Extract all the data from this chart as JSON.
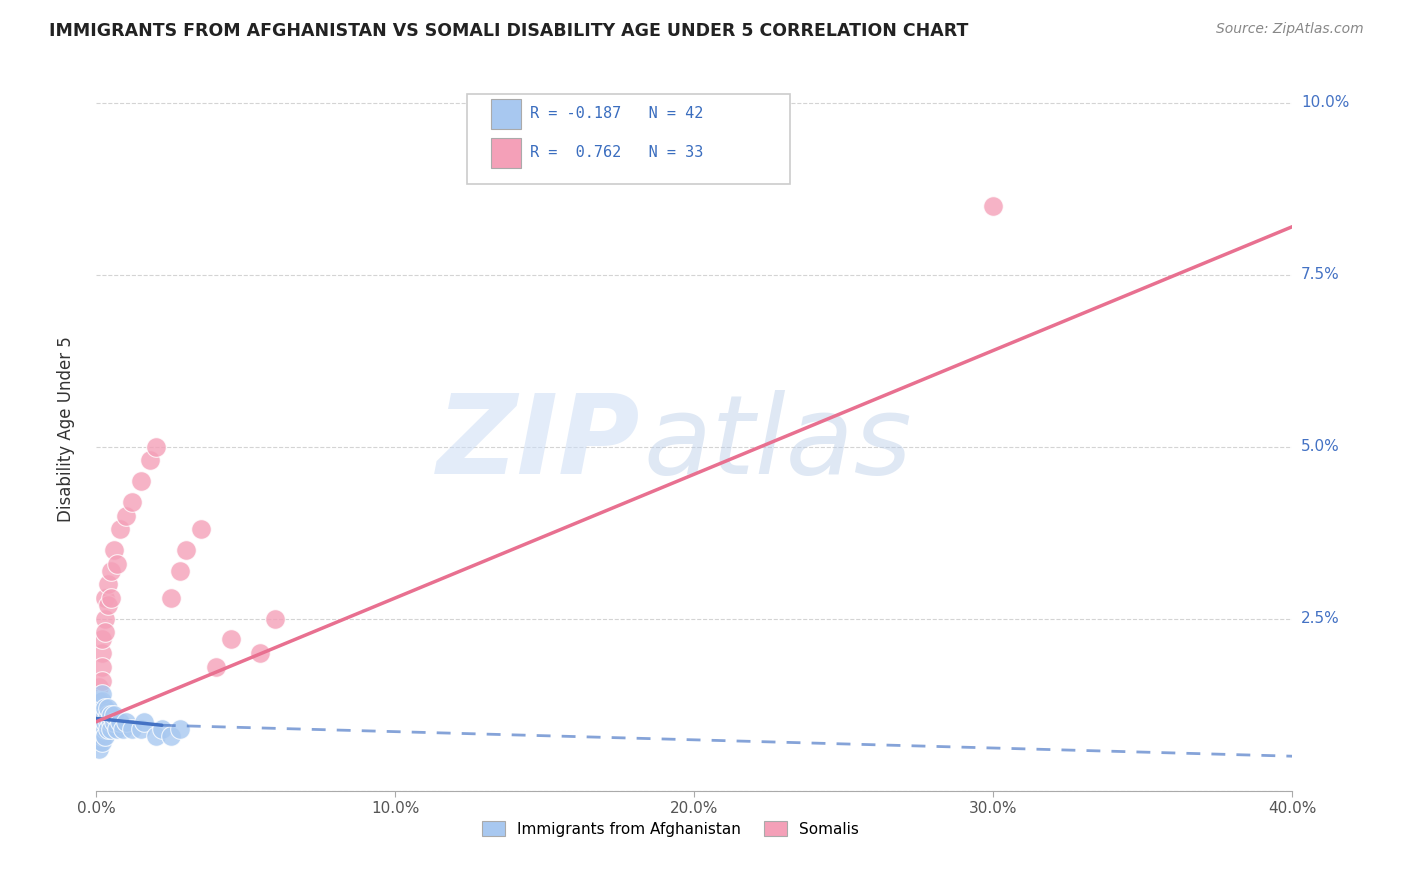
{
  "title": "IMMIGRANTS FROM AFGHANISTAN VS SOMALI DISABILITY AGE UNDER 5 CORRELATION CHART",
  "source": "Source: ZipAtlas.com",
  "xlabel": "",
  "ylabel": "Disability Age Under 5",
  "watermark_zip": "ZIP",
  "watermark_atlas": "atlas",
  "legend_blue_label": "Immigrants from Afghanistan",
  "legend_pink_label": "Somalis",
  "R_blue": -0.187,
  "N_blue": 42,
  "R_pink": 0.762,
  "N_pink": 33,
  "blue_color": "#a8c8f0",
  "pink_color": "#f4a0b8",
  "blue_line_color": "#4472C4",
  "pink_line_color": "#e87090",
  "xlim": [
    0.0,
    0.4
  ],
  "ylim": [
    0.0,
    0.105
  ],
  "xticks": [
    0.0,
    0.1,
    0.2,
    0.3,
    0.4
  ],
  "yticks": [
    0.0,
    0.025,
    0.05,
    0.075,
    0.1
  ],
  "ytick_labels": [
    "",
    "2.5%",
    "5.0%",
    "7.5%",
    "10.0%"
  ],
  "xtick_labels": [
    "0.0%",
    "10.0%",
    "20.0%",
    "30.0%",
    "40.0%"
  ],
  "blue_x": [
    0.001,
    0.001,
    0.001,
    0.001,
    0.001,
    0.001,
    0.001,
    0.001,
    0.002,
    0.002,
    0.002,
    0.002,
    0.002,
    0.002,
    0.002,
    0.002,
    0.003,
    0.003,
    0.003,
    0.003,
    0.003,
    0.003,
    0.004,
    0.004,
    0.004,
    0.004,
    0.005,
    0.005,
    0.005,
    0.006,
    0.006,
    0.007,
    0.008,
    0.009,
    0.01,
    0.012,
    0.015,
    0.016,
    0.02,
    0.022,
    0.025,
    0.028
  ],
  "blue_y": [
    0.01,
    0.008,
    0.012,
    0.009,
    0.011,
    0.007,
    0.013,
    0.006,
    0.01,
    0.012,
    0.009,
    0.011,
    0.008,
    0.013,
    0.007,
    0.014,
    0.01,
    0.009,
    0.011,
    0.012,
    0.008,
    0.01,
    0.01,
    0.011,
    0.009,
    0.012,
    0.01,
    0.009,
    0.011,
    0.01,
    0.011,
    0.009,
    0.01,
    0.009,
    0.01,
    0.009,
    0.009,
    0.01,
    0.008,
    0.009,
    0.008,
    0.009
  ],
  "pink_x": [
    0.001,
    0.001,
    0.001,
    0.001,
    0.001,
    0.002,
    0.002,
    0.002,
    0.002,
    0.003,
    0.003,
    0.003,
    0.004,
    0.004,
    0.005,
    0.005,
    0.006,
    0.007,
    0.008,
    0.01,
    0.012,
    0.015,
    0.018,
    0.02,
    0.025,
    0.028,
    0.03,
    0.035,
    0.04,
    0.045,
    0.055,
    0.06,
    0.3
  ],
  "pink_y": [
    0.01,
    0.012,
    0.015,
    0.013,
    0.008,
    0.02,
    0.018,
    0.022,
    0.016,
    0.025,
    0.023,
    0.028,
    0.03,
    0.027,
    0.032,
    0.028,
    0.035,
    0.033,
    0.038,
    0.04,
    0.042,
    0.045,
    0.048,
    0.05,
    0.028,
    0.032,
    0.035,
    0.038,
    0.018,
    0.022,
    0.02,
    0.025,
    0.085
  ],
  "pink_line_x0": 0.0,
  "pink_line_y0": 0.01,
  "pink_line_x1": 0.4,
  "pink_line_y1": 0.082,
  "blue_line_solid_x0": 0.0,
  "blue_line_solid_y0": 0.0105,
  "blue_line_solid_x1": 0.022,
  "blue_line_solid_y1": 0.0095,
  "blue_line_dash_x0": 0.022,
  "blue_line_dash_y0": 0.0095,
  "blue_line_dash_x1": 0.4,
  "blue_line_dash_y1": 0.005,
  "background_color": "#ffffff",
  "grid_color": "#d0d0d0"
}
